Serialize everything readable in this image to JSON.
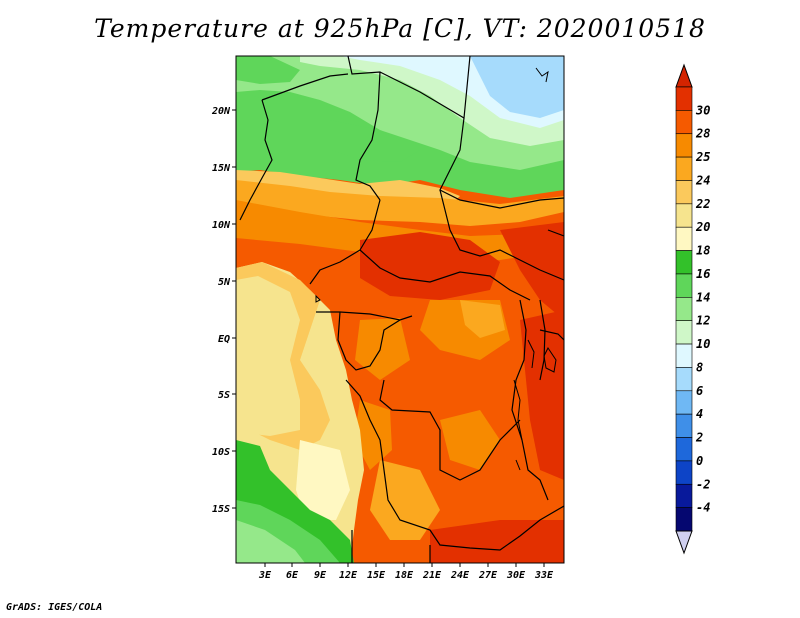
{
  "title": "Temperature at 925hPa [C], VT: 2020010518",
  "credit": "GrADS: IGES/COLA",
  "map": {
    "lat_labels": [
      "20N",
      "15N",
      "10N",
      "5N",
      "EQ",
      "5S",
      "10S",
      "15S"
    ],
    "lon_labels": [
      "3E",
      "6E",
      "9E",
      "12E",
      "15E",
      "18E",
      "21E",
      "24E",
      "27E",
      "30E",
      "33E"
    ]
  },
  "colorbar": {
    "labels": [
      "30",
      "28",
      "25",
      "24",
      "22",
      "20",
      "18",
      "16",
      "14",
      "12",
      "10",
      "8",
      "6",
      "4",
      "2",
      "0",
      "-2",
      "-4"
    ],
    "colors": [
      "#e33000",
      "#f55a00",
      "#f78a00",
      "#fba81f",
      "#fbc95c",
      "#f6e48e",
      "#fff8c2",
      "#33c12a",
      "#5fd65a",
      "#95e88a",
      "#cff7c8",
      "#dff8ff",
      "#a6dbfc",
      "#6fb8f4",
      "#3f8fe8",
      "#1e68db",
      "#0d44c7",
      "#08199b",
      "#050770"
    ],
    "top_arrow_color": "#d42400",
    "bottom_arrow_color": "#d0d0f0"
  }
}
